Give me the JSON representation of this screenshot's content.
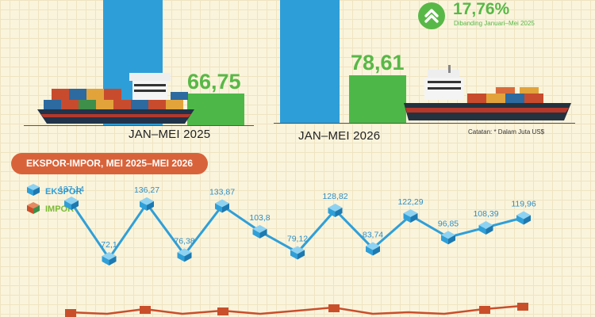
{
  "top": {
    "growth_pct": "17,76%",
    "growth_note": "Dibanding Januari–Mei 2025",
    "note": "Catatan: * Dalam Juta US$",
    "periods": [
      {
        "label": "JAN–MEI 2025",
        "impor_label": "66,75"
      },
      {
        "label": "JAN–MEI 2026",
        "impor_label": "78,61"
      }
    ]
  },
  "chart_data": {
    "type": "line",
    "title": "EKSPOR-IMPOR, MEI 2025–MEI 2026",
    "legend": [
      "EKSPOR",
      "IMPOR"
    ],
    "series": [
      {
        "name": "EKSPOR",
        "values": [
          137.14,
          72.1,
          136.27,
          76.38,
          133.87,
          103.8,
          79.12,
          128.82,
          83.74,
          122.29,
          96.85,
          108.39,
          119.96
        ],
        "labels": [
          "137,14",
          "72,1",
          "136,27",
          "76,38",
          "133,87",
          "103,8",
          "79,12",
          "128,82",
          "83,74",
          "122,29",
          "96,85",
          "108,39",
          "119,96"
        ]
      }
    ],
    "colors": {
      "ekspor": "#2f9fd8",
      "impor": "#c94f2b"
    }
  }
}
